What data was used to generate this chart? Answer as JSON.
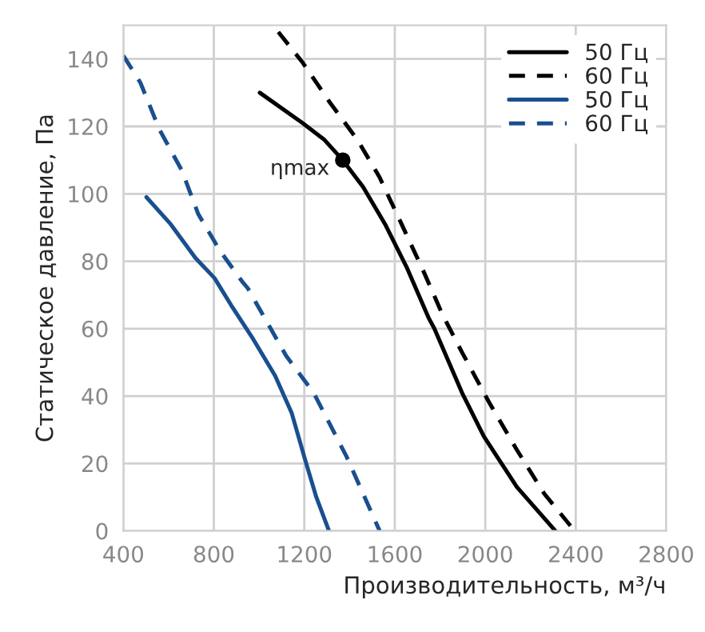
{
  "chart_data": {
    "type": "line",
    "xlabel": "Производительность, м³/ч",
    "ylabel": "Статическое давление, Па",
    "xlim": [
      400,
      2800
    ],
    "xticks": [
      400,
      800,
      1200,
      1600,
      2000,
      2400,
      2800
    ],
    "ylim": [
      0,
      150
    ],
    "yticks": [
      0,
      20,
      40,
      60,
      80,
      100,
      120,
      140
    ],
    "grid": true,
    "legend": "top right",
    "marker": "none",
    "series": [
      {
        "name": "50 Гц",
        "color": "#000000",
        "line_style": "solid",
        "x": [
          1003,
          1192,
          1289,
          1370,
          1460,
          1557,
          1654,
          1751,
          1775,
          1897,
          1994,
          2140,
          2310
        ],
        "values": [
          130,
          121,
          116,
          110,
          102,
          91,
          78,
          63,
          60,
          41,
          28,
          13,
          0
        ]
      },
      {
        "name": "60 Гц",
        "color": "#000000",
        "line_style": "dashed",
        "x": [
          1085,
          1192,
          1314,
          1435,
          1532,
          1630,
          1727,
          1812,
          1897,
          2018,
          2140,
          2261,
          2395
        ],
        "values": [
          148,
          139,
          127,
          116,
          105,
          91,
          77,
          64,
          53,
          38,
          24,
          11,
          0
        ]
      },
      {
        "name": "50 Гц",
        "color": "#1a4f8f",
        "line_style": "solid",
        "x": [
          502,
          609,
          718,
          803,
          876,
          973,
          1071,
          1144,
          1204,
          1253,
          1309
        ],
        "values": [
          99,
          91,
          81,
          75,
          67,
          57,
          46,
          35,
          21,
          10,
          0
        ]
      },
      {
        "name": "60 Гц",
        "color": "#1a4f8f",
        "line_style": "dashed",
        "x": [
          400,
          475,
          560,
          658,
          731,
          828,
          925,
          950,
          1119,
          1241,
          1387,
          1533
        ],
        "values": [
          141,
          133,
          119,
          107,
          94,
          83,
          74,
          72,
          52,
          41,
          22,
          0
        ]
      }
    ],
    "annotations": [
      {
        "text": "ηmax",
        "x": 1370,
        "y": 110
      }
    ]
  }
}
